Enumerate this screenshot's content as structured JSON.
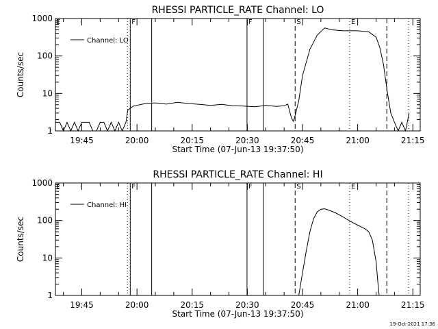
{
  "footer": {
    "timestamp": "19-Oct-2021 17:36"
  },
  "chart_data": [
    {
      "type": "line",
      "title": "RHESSI PARTICLE_RATE Channel: LO",
      "xlabel": "Start Time (07-Jun-13 19:37:50)",
      "ylabel": "Counts/sec",
      "yscale": "log",
      "xlim": [
        "19:37:50",
        "21:17:00"
      ],
      "ylim": [
        1,
        1000
      ],
      "xticks": [
        "19:45",
        "20:00",
        "20:15",
        "20:30",
        "20:45",
        "21:00",
        "21:15"
      ],
      "yticks": [
        "1",
        "10",
        "100",
        "1000"
      ],
      "legend": "top-left",
      "series": [
        {
          "name": "Channel: LO",
          "x": [
            "19:37:50",
            "19:39:00",
            "19:40:00",
            "19:41:00",
            "19:42:00",
            "19:43:00",
            "19:44:00",
            "19:45:00",
            "19:46:00",
            "19:47:00",
            "19:48:00",
            "19:49:00",
            "19:50:00",
            "19:51:00",
            "19:52:00",
            "19:53:00",
            "19:54:00",
            "19:55:00",
            "19:56:00",
            "19:57:00",
            "19:57:30",
            "19:59:00",
            "20:02:00",
            "20:05:00",
            "20:08:00",
            "20:11:00",
            "20:14:00",
            "20:17:00",
            "20:20:00",
            "20:23:00",
            "20:26:00",
            "20:29:00",
            "20:32:00",
            "20:35:00",
            "20:38:00",
            "20:40:00",
            "20:41:00",
            "20:42:00",
            "20:42:30",
            "20:43:00",
            "20:44:00",
            "20:45:00",
            "20:47:00",
            "20:49:00",
            "20:51:00",
            "20:53:00",
            "20:56:00",
            "21:00:00",
            "21:03:00",
            "21:05:00",
            "21:06:00",
            "21:07:00",
            "21:08:00",
            "21:09:00",
            "21:10:00",
            "21:11:00",
            "21:12:00",
            "21:13:00",
            "21:14:00"
          ],
          "y": [
            1.7,
            1.7,
            1,
            1.7,
            1,
            1.7,
            1,
            1.7,
            1.7,
            1.7,
            1,
            1,
            1.7,
            1.7,
            1,
            1.7,
            1,
            1.7,
            1,
            1.7,
            3.6,
            4.6,
            5.3,
            5.6,
            5.2,
            5.8,
            5.4,
            5.1,
            4.8,
            5.1,
            4.7,
            4.6,
            4.4,
            4.8,
            4.5,
            4.7,
            5.2,
            2.2,
            1.8,
            2.6,
            6.5,
            30,
            150,
            360,
            560,
            500,
            470,
            470,
            440,
            320,
            170,
            60,
            12,
            3,
            1.7,
            1,
            1.7,
            1,
            3
          ]
        }
      ],
      "markers": [
        {
          "time": "19:57:25",
          "style": "dotted",
          "label": ""
        },
        {
          "time": "19:58:10",
          "style": "solid",
          "label": "F"
        },
        {
          "time": "20:04:00",
          "style": "solid",
          "label": ""
        },
        {
          "time": "20:29:55",
          "style": "solid",
          "label": "F"
        },
        {
          "time": "20:34:20",
          "style": "solid",
          "label": ""
        },
        {
          "time": "20:43:00",
          "style": "dashed",
          "label": "S"
        },
        {
          "time": "20:57:50",
          "style": "dotted",
          "label": "E"
        },
        {
          "time": "21:07:55",
          "style": "dashed",
          "label": ""
        },
        {
          "time": "21:13:50",
          "style": "dotted",
          "label": ""
        }
      ],
      "corner_label": "E"
    },
    {
      "type": "line",
      "title": "RHESSI PARTICLE_RATE Channel: HI",
      "xlabel": "Start Time (07-Jun-13 19:37:50)",
      "ylabel": "Counts/sec",
      "yscale": "log",
      "xlim": [
        "19:37:50",
        "21:17:00"
      ],
      "ylim": [
        1,
        1000
      ],
      "xticks": [
        "19:45",
        "20:00",
        "20:15",
        "20:30",
        "20:45",
        "21:00",
        "21:15"
      ],
      "yticks": [
        "1",
        "10",
        "100",
        "1000"
      ],
      "legend": "top-left",
      "series": [
        {
          "name": "Channel: HI",
          "x": [
            "20:44:00",
            "20:45:00",
            "20:46:00",
            "20:47:00",
            "20:48:00",
            "20:49:00",
            "20:50:00",
            "20:51:00",
            "20:52:00",
            "20:54:00",
            "20:56:00",
            "20:58:00",
            "21:00:00",
            "21:02:00",
            "21:03:00",
            "21:04:00",
            "21:05:00",
            "21:05:30",
            "21:05:50"
          ],
          "y": [
            1,
            4,
            15,
            50,
            110,
            170,
            200,
            205,
            190,
            160,
            125,
            95,
            75,
            60,
            50,
            30,
            8,
            2.2,
            1
          ]
        }
      ],
      "markers": [
        {
          "time": "19:57:25",
          "style": "dotted",
          "label": ""
        },
        {
          "time": "19:58:10",
          "style": "solid",
          "label": "F"
        },
        {
          "time": "20:04:00",
          "style": "solid",
          "label": ""
        },
        {
          "time": "20:29:55",
          "style": "solid",
          "label": "F"
        },
        {
          "time": "20:34:20",
          "style": "solid",
          "label": ""
        },
        {
          "time": "20:43:00",
          "style": "dashed",
          "label": "S"
        },
        {
          "time": "20:57:50",
          "style": "dotted",
          "label": "E"
        },
        {
          "time": "21:07:55",
          "style": "dashed",
          "label": ""
        },
        {
          "time": "21:13:50",
          "style": "dotted",
          "label": ""
        }
      ],
      "corner_label": "E"
    }
  ]
}
